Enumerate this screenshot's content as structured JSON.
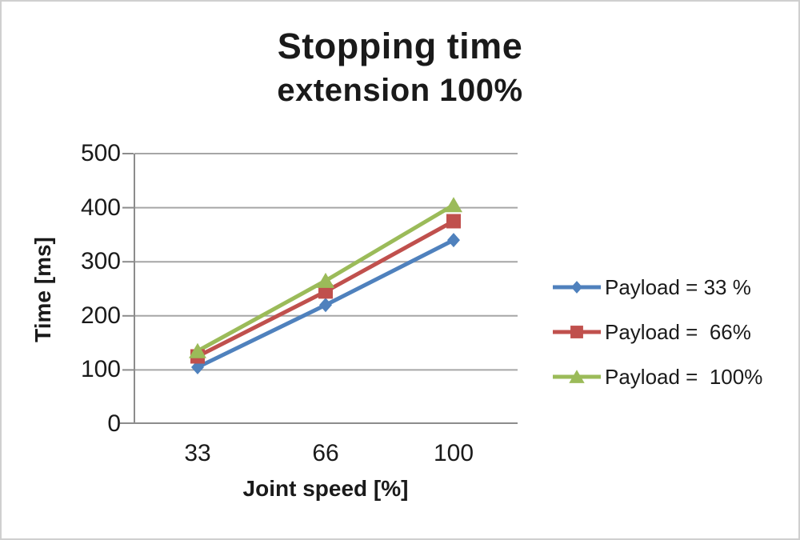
{
  "frame": {
    "background": "#ffffff",
    "border_color": "#cfcfcf"
  },
  "chart_data": {
    "type": "line",
    "title": "Stopping time",
    "subtitle": "extension 100%",
    "xlabel": "Joint speed [%]",
    "ylabel": "Time [ms]",
    "categories": [
      "33",
      "66",
      "100"
    ],
    "yticks": [
      0,
      100,
      200,
      300,
      400,
      500
    ],
    "ylim": [
      0,
      500
    ],
    "grid": "horizontal",
    "legend_position": "right",
    "axis_color": "#8c8c8c",
    "gridline_color": "#a6a6a6",
    "text_color": "#1a1a1a",
    "series": [
      {
        "name": "Payload = 33 %",
        "marker": "diamond",
        "color": "#4F81BD",
        "values": [
          105,
          220,
          340
        ]
      },
      {
        "name": "Payload =  66%",
        "marker": "square",
        "color": "#C0504D",
        "values": [
          125,
          245,
          375
        ]
      },
      {
        "name": "Payload =  100%",
        "marker": "triangle",
        "color": "#9BBB59",
        "values": [
          135,
          265,
          405
        ]
      }
    ]
  }
}
